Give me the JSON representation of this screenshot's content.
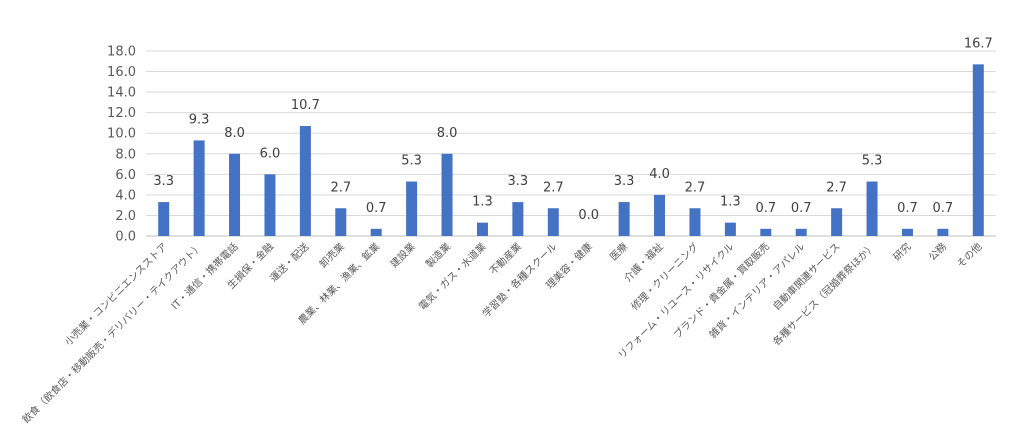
{
  "chart_data": {
    "type": "bar",
    "title": "",
    "xlabel": "",
    "ylabel": "",
    "ylim": [
      0,
      18
    ],
    "yticks": [
      0,
      2,
      4,
      6,
      8,
      10,
      12,
      14,
      16,
      18
    ],
    "grid": true,
    "bar_color": "#4472c4",
    "categories": [
      "小売業・コンビニエンスストア",
      "飲食（飲食店・移動販売・デリバリー・テイクアウト）",
      "IT・通信・携帯電話",
      "生損保・金融",
      "運送・配送",
      "卸売業",
      "農業、林業、漁業、鉱業",
      "建設業",
      "製造業",
      "電気・ガス・水道業",
      "不動産業",
      "学習塾・各種スクール",
      "理美容・健康",
      "医療",
      "介護・福祉",
      "修理・クリーニング",
      "リフォーム・リユース・リサイクル",
      "ブランド・貴金属・買取販売",
      "雑貨・インテリア・アパレル",
      "自動車関連サービス",
      "各種サービス（冠婚葬祭ほか）",
      "研究",
      "公務",
      "その他"
    ],
    "values": [
      3.3,
      9.3,
      8.0,
      6.0,
      10.7,
      2.7,
      0.7,
      5.3,
      8.0,
      1.3,
      3.3,
      2.7,
      0.0,
      3.3,
      4.0,
      2.7,
      1.3,
      0.7,
      0.7,
      2.7,
      5.3,
      0.7,
      0.7,
      16.7
    ],
    "value_labels": [
      "3.3",
      "9.3",
      "8.0",
      "6.0",
      "10.7",
      "2.7",
      "0.7",
      "5.3",
      "8.0",
      "1.3",
      "3.3",
      "2.7",
      "0.0",
      "3.3",
      "4.0",
      "2.7",
      "1.3",
      "0.7",
      "0.7",
      "2.7",
      "5.3",
      "0.7",
      "0.7",
      "16.7"
    ],
    "ytick_labels": [
      "0.0",
      "2.0",
      "4.0",
      "6.0",
      "8.0",
      "10.0",
      "12.0",
      "14.0",
      "16.0",
      "18.0"
    ]
  }
}
